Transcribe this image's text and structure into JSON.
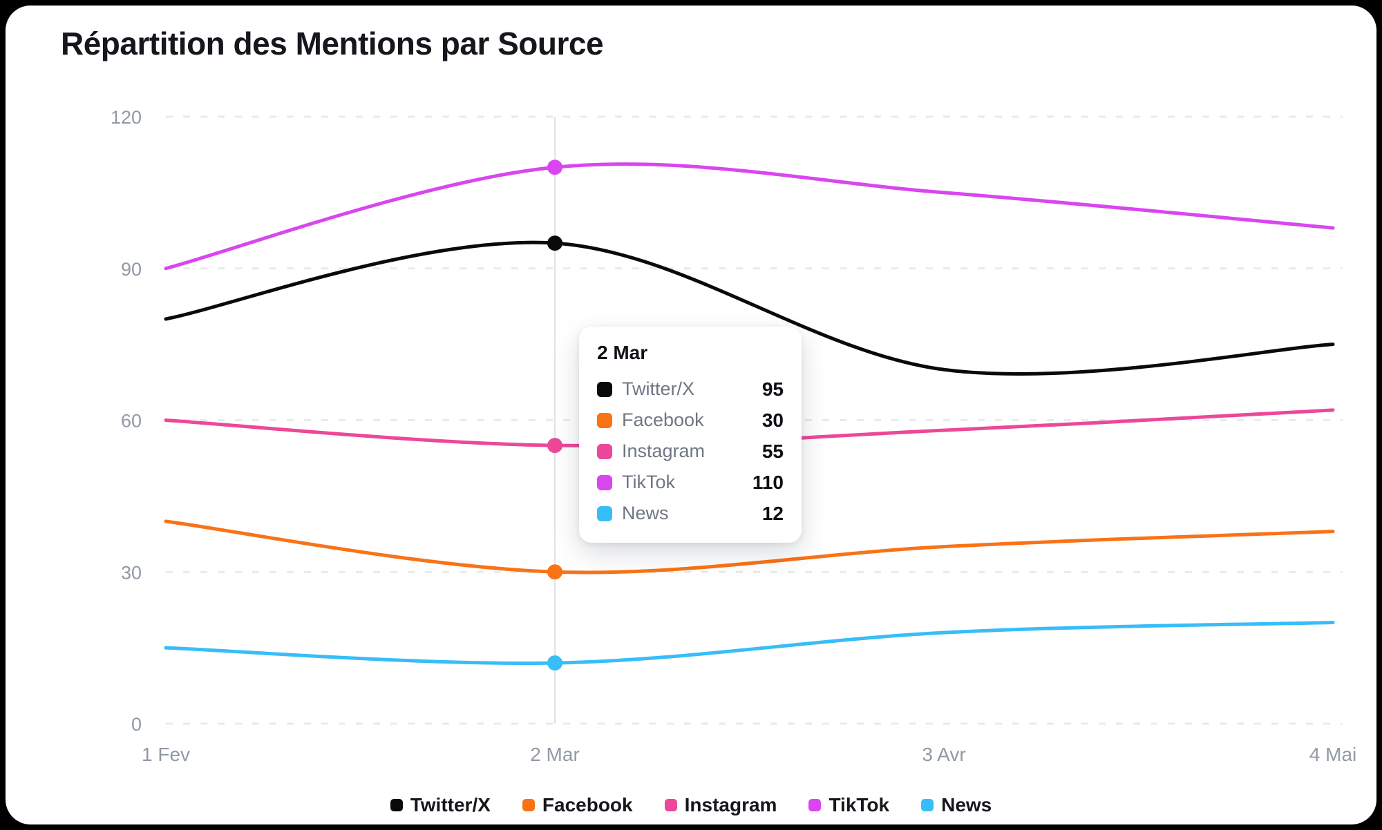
{
  "title": "Répartition des Mentions par Source",
  "chart_data": {
    "type": "line",
    "x": [
      "1 Fev",
      "2 Mar",
      "3 Avr",
      "4 Mai"
    ],
    "series": [
      {
        "name": "Twitter/X",
        "color": "#0a0a0a",
        "values": [
          80,
          95,
          70,
          75
        ]
      },
      {
        "name": "Facebook",
        "color": "#f97316",
        "values": [
          40,
          30,
          35,
          38
        ]
      },
      {
        "name": "Instagram",
        "color": "#ec4899",
        "values": [
          60,
          55,
          58,
          62
        ]
      },
      {
        "name": "TikTok",
        "color": "#d946ef",
        "values": [
          90,
          110,
          105,
          98
        ]
      },
      {
        "name": "News",
        "color": "#38bdf8",
        "values": [
          15,
          12,
          18,
          20
        ]
      }
    ],
    "ylim": [
      0,
      120
    ],
    "yticks": [
      0,
      30,
      60,
      90,
      120
    ],
    "grid": "horizontal-dashed",
    "legend_position": "bottom",
    "active_index": 1
  },
  "tooltip": {
    "title": "2 Mar",
    "rows": [
      {
        "label": "Twitter/X",
        "value": "95",
        "color": "#0a0a0a"
      },
      {
        "label": "Facebook",
        "value": "30",
        "color": "#f97316"
      },
      {
        "label": "Instagram",
        "value": "55",
        "color": "#ec4899"
      },
      {
        "label": "TikTok",
        "value": "110",
        "color": "#d946ef"
      },
      {
        "label": "News",
        "value": "12",
        "color": "#38bdf8"
      }
    ]
  },
  "legend": {
    "items": [
      "Twitter/X",
      "Facebook",
      "Instagram",
      "TikTok",
      "News"
    ]
  },
  "colors": {
    "page_background": "#000000",
    "card_background": "#ffffff",
    "grid_line": "#e8eaee",
    "crosshair_line": "#e3e5e9",
    "axis_text": "#9199a6",
    "title_text": "#15171c"
  }
}
